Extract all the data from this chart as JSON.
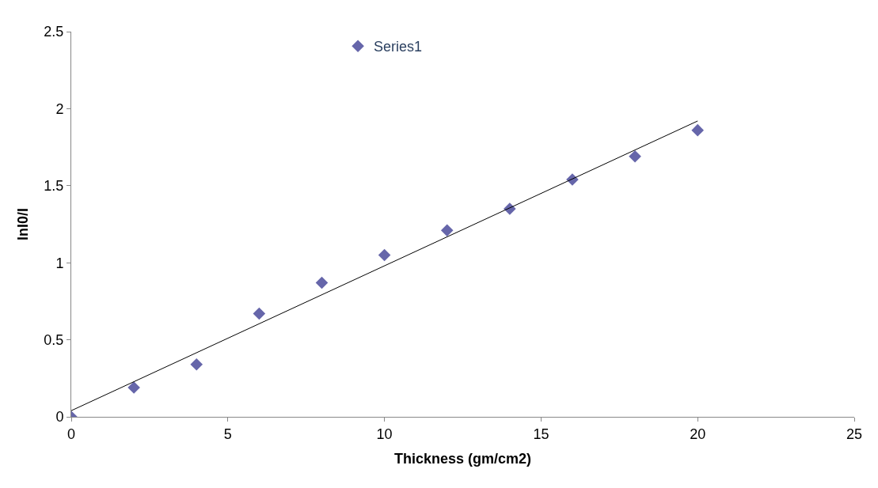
{
  "chart_data": {
    "type": "scatter",
    "xlabel": "Thickness (gm/cm2)",
    "ylabel": "lnI0/I",
    "xlim": [
      0,
      25
    ],
    "xticks": [
      0,
      5,
      10,
      15,
      20,
      25
    ],
    "ylim": [
      0,
      2.5
    ],
    "yticks": [
      0,
      0.5,
      1,
      1.5,
      2,
      2.5
    ],
    "legend": "top",
    "marker": "diamond",
    "series": [
      {
        "name": "Series1",
        "color": "#6666aa",
        "x": [
          0,
          2,
          4,
          6,
          8,
          10,
          12,
          14,
          16,
          18,
          20
        ],
        "values": [
          0,
          0.19,
          0.34,
          0.67,
          0.87,
          1.05,
          1.21,
          1.35,
          1.54,
          1.69,
          1.86
        ]
      },
      {
        "type": "line",
        "color": "#000000",
        "marker": "none",
        "x": [
          0,
          20
        ],
        "values": [
          0.04,
          1.92
        ]
      }
    ]
  }
}
